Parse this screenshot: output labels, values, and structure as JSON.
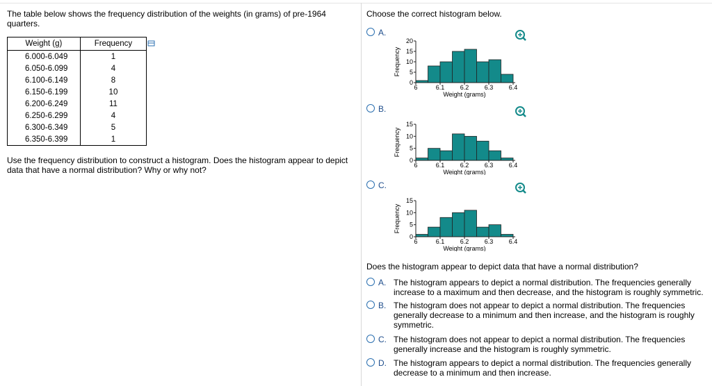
{
  "left": {
    "intro": "The table below shows the frequency distribution of the weights (in grams) of pre-1964 quarters.",
    "table": {
      "headers": [
        "Weight (g)",
        "Frequency"
      ],
      "rows": [
        [
          "6.000-6.049",
          1
        ],
        [
          "6.050-6.099",
          4
        ],
        [
          "6.100-6.149",
          8
        ],
        [
          "6.150-6.199",
          10
        ],
        [
          "6.200-6.249",
          11
        ],
        [
          "6.250-6.299",
          4
        ],
        [
          "6.300-6.349",
          5
        ],
        [
          "6.350-6.399",
          1
        ]
      ]
    },
    "prompt": "Use the frequency distribution to construct a histogram. Does the histogram appear to depict data that have a normal distribution? Why or why not?"
  },
  "right": {
    "prompt": "Choose the correct histogram below.",
    "options": [
      {
        "label": "A.",
        "chart": {
          "type": "histogram",
          "xlabel": "Weight (grams)",
          "ylabel": "Frequency",
          "color": "#138a8a",
          "bins": [
            6.0,
            6.05,
            6.1,
            6.15,
            6.2,
            6.25,
            6.3,
            6.35,
            6.4
          ],
          "values": [
            1,
            8,
            10,
            15,
            16,
            10,
            11,
            4
          ],
          "xlim": [
            6,
            6.4
          ],
          "xticks": [
            6,
            6.1,
            6.2,
            6.3,
            6.4
          ],
          "ylim": [
            0,
            20
          ],
          "yticks": [
            0,
            5,
            10,
            15,
            20
          ]
        }
      },
      {
        "label": "B.",
        "chart": {
          "type": "histogram",
          "xlabel": "Weight (grams)",
          "ylabel": "Frequency",
          "color": "#138a8a",
          "bins": [
            6.0,
            6.05,
            6.1,
            6.15,
            6.2,
            6.25,
            6.3,
            6.35,
            6.4
          ],
          "values": [
            1,
            5,
            4,
            11,
            10,
            8,
            4,
            1
          ],
          "xlim": [
            6,
            6.4
          ],
          "xticks": [
            6,
            6.1,
            6.2,
            6.3,
            6.4
          ],
          "ylim": [
            0,
            15
          ],
          "yticks": [
            0,
            5,
            10,
            15
          ]
        }
      },
      {
        "label": "C.",
        "chart": {
          "type": "histogram",
          "xlabel": "Weight (grams)",
          "ylabel": "Frequency",
          "color": "#138a8a",
          "bins": [
            6.0,
            6.05,
            6.1,
            6.15,
            6.2,
            6.25,
            6.3,
            6.35,
            6.4
          ],
          "values": [
            1,
            4,
            8,
            10,
            11,
            4,
            5,
            1
          ],
          "xlim": [
            6,
            6.4
          ],
          "xticks": [
            6,
            6.1,
            6.2,
            6.3,
            6.4
          ],
          "ylim": [
            0,
            15
          ],
          "yticks": [
            0,
            5,
            10,
            15
          ]
        }
      }
    ],
    "question": "Does the histogram appear to depict data that have a normal distribution?",
    "answers": [
      {
        "label": "A.",
        "text": "The histogram appears to depict a normal distribution. The frequencies generally increase to a maximum and then decrease, and the histogram is roughly symmetric."
      },
      {
        "label": "B.",
        "text": "The histogram does not appear to depict a normal distribution. The frequencies generally decrease to a minimum and then increase, and the histogram is roughly symmetric."
      },
      {
        "label": "C.",
        "text": "The histogram does not appear to depict a normal distribution. The frequencies generally increase and the histogram is roughly symmetric."
      },
      {
        "label": "D.",
        "text": "The histogram appears to depict a normal distribution. The frequencies generally decrease to a minimum and then increase."
      }
    ]
  }
}
